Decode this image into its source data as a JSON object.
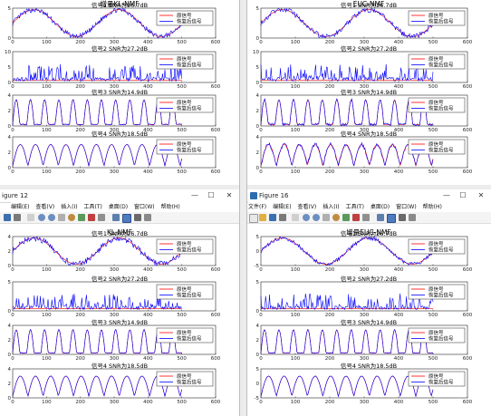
{
  "figures": [
    {
      "id": "tl",
      "title": "增量KL-NMF",
      "has_chrome": false,
      "xticks": [
        "0",
        "100",
        "200",
        "300",
        "400",
        "500",
        "600"
      ],
      "plots": [
        {
          "label": "信号1  SNR为26.7dB",
          "yticks": [
            "0",
            "5"
          ],
          "ylim": [
            0,
            5
          ],
          "kind": "sine",
          "noise": 0.5
        },
        {
          "label": "信号2  SNR为27.2dB",
          "yticks": [
            "0",
            "5",
            "10"
          ],
          "ylim": [
            0,
            10
          ],
          "kind": "spikes",
          "noise": 0
        },
        {
          "label": "信号3  SNR为14.9dB",
          "yticks": [
            "0",
            "2",
            "4"
          ],
          "ylim": [
            0,
            4
          ],
          "kind": "pulse",
          "noise": 0.1
        },
        {
          "label": "信号4  SNR为18.5dB",
          "yticks": [
            "0",
            "2",
            "4"
          ],
          "ylim": [
            0,
            4
          ],
          "kind": "arch",
          "noise": 0.05
        }
      ],
      "legend": [
        "原信号",
        "恢复后信号"
      ]
    },
    {
      "id": "tr",
      "title": "EUC-NMF",
      "has_chrome": false,
      "xticks": [
        "0",
        "100",
        "200",
        "300",
        "400",
        "500",
        "600"
      ],
      "plots": [
        {
          "label": "信号1  SNR为26.7dB",
          "yticks": [
            "0",
            "5"
          ],
          "ylim": [
            0,
            5
          ],
          "kind": "sine",
          "noise": 0.5
        },
        {
          "label": "信号2  SNR为27.2dB",
          "yticks": [
            "0",
            "5",
            "10"
          ],
          "ylim": [
            0,
            10
          ],
          "kind": "spikes",
          "noise": 0
        },
        {
          "label": "信号3  SNR为14.9dB",
          "yticks": [
            "0",
            "2",
            "4"
          ],
          "ylim": [
            0,
            4
          ],
          "kind": "pulse",
          "noise": 0.25
        },
        {
          "label": "信号4  SNR为18.5dB",
          "yticks": [
            "0",
            "2",
            "4"
          ],
          "ylim": [
            0,
            4
          ],
          "kind": "arch",
          "noise": 0.35
        }
      ],
      "legend": [
        "原信号",
        "恢复后信号"
      ]
    },
    {
      "id": "bl",
      "title": "KL-NMF",
      "has_chrome": true,
      "window_title": "igure 12",
      "menus": [
        "编辑(E)",
        "查看(V)",
        "插入(I)",
        "工具(T)",
        "桌面(D)",
        "窗口(W)",
        "帮助(H)"
      ],
      "xticks": [
        "0",
        "100",
        "200",
        "300",
        "400",
        "500",
        "600"
      ],
      "plots": [
        {
          "label": "信号1  SNR为26.7dB",
          "yticks": [
            "0",
            "2",
            "4"
          ],
          "ylim": [
            0,
            4
          ],
          "kind": "sine",
          "noise": 0.6
        },
        {
          "label": "信号2  SNR为27.2dB",
          "yticks": [
            "0",
            "5"
          ],
          "ylim": [
            0,
            5
          ],
          "kind": "spikes",
          "noise": 0
        },
        {
          "label": "信号3  SNR为14.9dB",
          "yticks": [
            "0",
            "2",
            "4"
          ],
          "ylim": [
            0,
            4
          ],
          "kind": "pulse",
          "noise": 0.08
        },
        {
          "label": "信号4  SNR为18.5dB",
          "yticks": [
            "0",
            "2",
            "4"
          ],
          "ylim": [
            0,
            4
          ],
          "kind": "arch",
          "noise": 0.05
        }
      ],
      "legend": [
        "原信号",
        "恢复后信号"
      ]
    },
    {
      "id": "br",
      "title": "增量EUC-NMF",
      "has_chrome": true,
      "window_title": "Figure 16",
      "menus": [
        "文件(F)",
        "编辑(E)",
        "查看(V)",
        "插入(I)",
        "工具(T)",
        "桌面(D)",
        "窗口(W)",
        "帮助(H)"
      ],
      "xticks": [
        "0",
        "100",
        "200",
        "300",
        "400",
        "500",
        "600"
      ],
      "plots": [
        {
          "label": "信号1  SNR为26.7dB",
          "yticks": [
            "-5",
            "0",
            "5"
          ],
          "ylim": [
            -5,
            5
          ],
          "kind": "sine",
          "noise": 0.4
        },
        {
          "label": "信号2  SNR为27.2dB",
          "yticks": [
            "0",
            "5"
          ],
          "ylim": [
            0,
            5
          ],
          "kind": "spikes",
          "noise": 0
        },
        {
          "label": "信号3  SNR为14.9dB",
          "yticks": [
            "0",
            "2",
            "4"
          ],
          "ylim": [
            0,
            4
          ],
          "kind": "pulse",
          "noise": 0.08
        },
        {
          "label": "信号4  SNR为18.5dB",
          "yticks": [
            "-5",
            "0",
            "5"
          ],
          "ylim": [
            -5,
            5
          ],
          "kind": "arch",
          "noise": 0.05
        }
      ],
      "legend": [
        "原信号",
        "恢复后信号"
      ]
    }
  ],
  "window_buttons": {
    "minimize": "—",
    "maximize": "☐",
    "close": "✕"
  },
  "colors": {
    "original": "#ff0000",
    "recovered": "#0000ff",
    "figure_bg": "#ffffff",
    "axes_bg": "#ffffff",
    "axis": "#262626"
  }
}
